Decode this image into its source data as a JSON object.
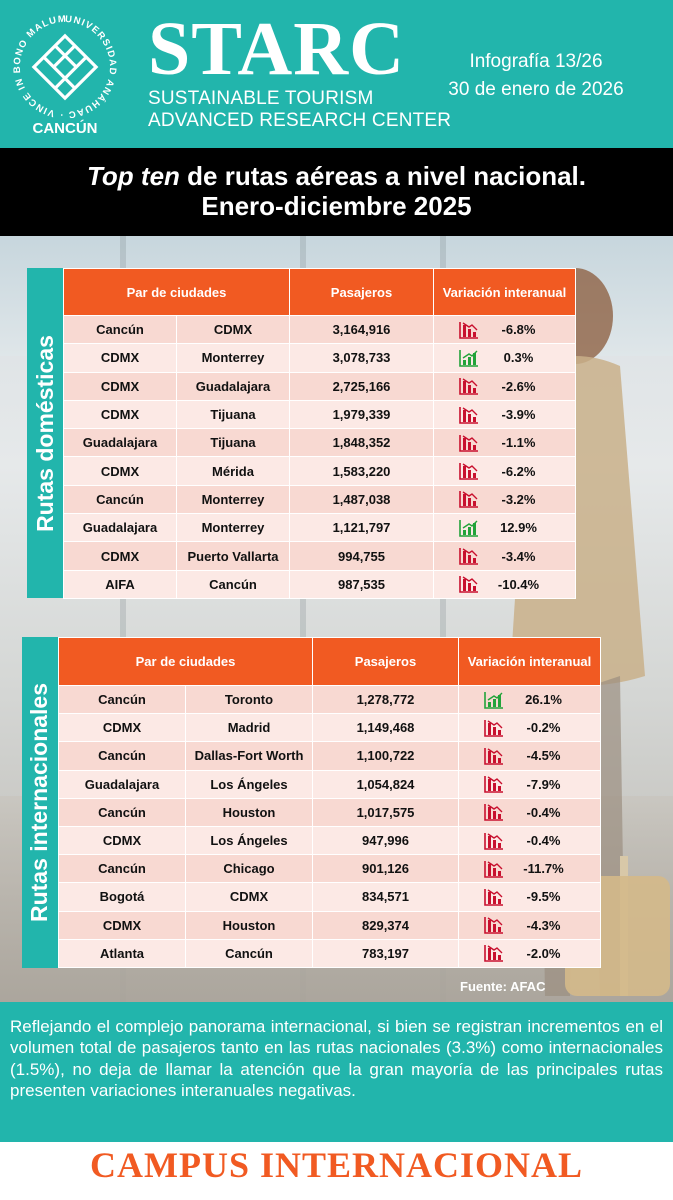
{
  "header": {
    "university_ring_text": "UNIVERSIDAD ANÁHUAC · VINCE IN BONO MALUM ·",
    "university_campus": "CANCÚN",
    "brand": "STARC",
    "brand_line1": "SUSTAINABLE TOURISM",
    "brand_line2": "ADVANCED RESEARCH CENTER",
    "infographic_number": "Infografía 13/26",
    "date": "30 de enero de 2026"
  },
  "title": {
    "italic_part": "Top ten",
    "rest_line1": " de rutas aéreas a nivel nacional.",
    "line2": "Enero-diciembre 2025"
  },
  "domestic": {
    "side_label": "Rutas domésticas",
    "headers": {
      "pair": "Par de ciudades",
      "passengers": "Pasajeros",
      "variation": "Variación interanual"
    },
    "rows": [
      {
        "origin": "Cancún",
        "destination": "CDMX",
        "passengers": "3,164,916",
        "variation": "-6.8%",
        "trend": "down"
      },
      {
        "origin": "CDMX",
        "destination": "Monterrey",
        "passengers": "3,078,733",
        "variation": "0.3%",
        "trend": "up"
      },
      {
        "origin": "CDMX",
        "destination": "Guadalajara",
        "passengers": "2,725,166",
        "variation": "-2.6%",
        "trend": "down"
      },
      {
        "origin": "CDMX",
        "destination": "Tijuana",
        "passengers": "1,979,339",
        "variation": "-3.9%",
        "trend": "down"
      },
      {
        "origin": "Guadalajara",
        "destination": "Tijuana",
        "passengers": "1,848,352",
        "variation": "-1.1%",
        "trend": "down"
      },
      {
        "origin": "CDMX",
        "destination": "Mérida",
        "passengers": "1,583,220",
        "variation": "-6.2%",
        "trend": "down"
      },
      {
        "origin": "Cancún",
        "destination": "Monterrey",
        "passengers": "1,487,038",
        "variation": "-3.2%",
        "trend": "down"
      },
      {
        "origin": "Guadalajara",
        "destination": "Monterrey",
        "passengers": "1,121,797",
        "variation": "12.9%",
        "trend": "up"
      },
      {
        "origin": "CDMX",
        "destination": "Puerto Vallarta",
        "passengers": "994,755",
        "variation": "-3.4%",
        "trend": "down"
      },
      {
        "origin": "AIFA",
        "destination": "Cancún",
        "passengers": "987,535",
        "variation": "-10.4%",
        "trend": "down"
      }
    ]
  },
  "international": {
    "side_label": "Rutas internacionales",
    "headers": {
      "pair": "Par de ciudades",
      "passengers": "Pasajeros",
      "variation": "Variación interanual"
    },
    "rows": [
      {
        "origin": "Cancún",
        "destination": "Toronto",
        "passengers": "1,278,772",
        "variation": "26.1%",
        "trend": "up"
      },
      {
        "origin": "CDMX",
        "destination": "Madrid",
        "passengers": "1,149,468",
        "variation": "-0.2%",
        "trend": "down"
      },
      {
        "origin": "Cancún",
        "destination": "Dallas-Fort Worth",
        "passengers": "1,100,722",
        "variation": "-4.5%",
        "trend": "down"
      },
      {
        "origin": "Guadalajara",
        "destination": "Los Ángeles",
        "passengers": "1,054,824",
        "variation": "-7.9%",
        "trend": "down"
      },
      {
        "origin": "Cancún",
        "destination": "Houston",
        "passengers": "1,017,575",
        "variation": "-0.4%",
        "trend": "down"
      },
      {
        "origin": "CDMX",
        "destination": "Los Ángeles",
        "passengers": "947,996",
        "variation": "-0.4%",
        "trend": "down"
      },
      {
        "origin": "Cancún",
        "destination": "Chicago",
        "passengers": "901,126",
        "variation": "-11.7%",
        "trend": "down"
      },
      {
        "origin": "Bogotá",
        "destination": "CDMX",
        "passengers": "834,571",
        "variation": "-9.5%",
        "trend": "down"
      },
      {
        "origin": "CDMX",
        "destination": "Houston",
        "passengers": "829,374",
        "variation": "-4.3%",
        "trend": "down"
      },
      {
        "origin": "Atlanta",
        "destination": "Cancún",
        "passengers": "783,197",
        "variation": "-2.0%",
        "trend": "down"
      }
    ]
  },
  "source": "Fuente: AFAC",
  "summary": "Reflejando el complejo panorama internacional, si bien se registran incrementos en el volumen total de pasajeros tanto en las rutas nacionales (3.3%) como internacionales (1.5%), no deja de llamar la atención que la gran mayoría de las principales rutas presenten variaciones interanuales negativas.",
  "footer": "CAMPUS INTERNACIONAL",
  "colors": {
    "teal": "#22b5ac",
    "orange": "#f15a22",
    "up": "#22a33a",
    "down": "#c8102e"
  }
}
